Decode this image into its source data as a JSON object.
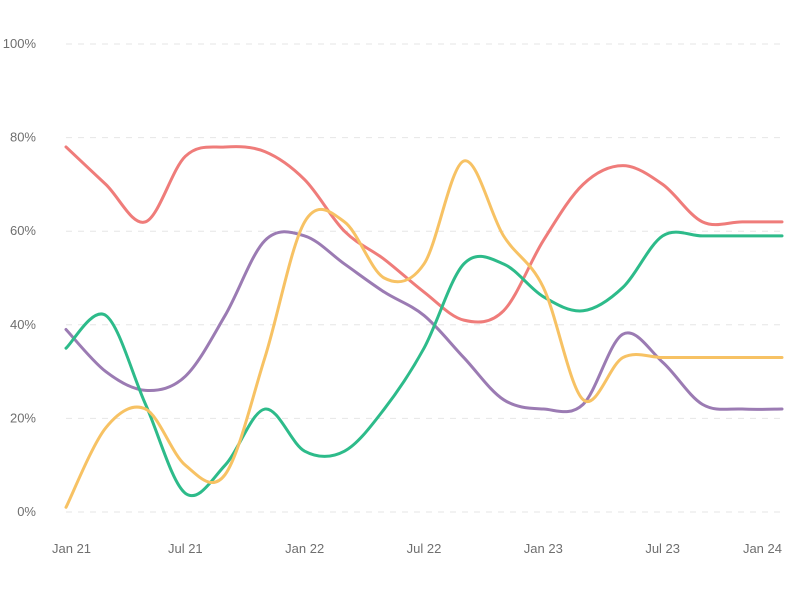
{
  "chart_data": {
    "type": "line",
    "title": "",
    "xlabel": "",
    "ylabel": "",
    "ylim": [
      0,
      100
    ],
    "grid": true,
    "legend": "none",
    "y_ticks": [
      {
        "value": 0,
        "label": "0%"
      },
      {
        "value": 20,
        "label": "20%"
      },
      {
        "value": 40,
        "label": "40%"
      },
      {
        "value": 60,
        "label": "60%"
      },
      {
        "value": 80,
        "label": "80%"
      },
      {
        "value": 100,
        "label": "100%"
      }
    ],
    "x_ticks": [
      {
        "value": "2021-01",
        "label": "Jan 21"
      },
      {
        "value": "2021-07",
        "label": "Jul 21"
      },
      {
        "value": "2022-01",
        "label": "Jan 22"
      },
      {
        "value": "2022-07",
        "label": "Jul 22"
      },
      {
        "value": "2023-01",
        "label": "Jan 23"
      },
      {
        "value": "2023-07",
        "label": "Jul 23"
      },
      {
        "value": "2024-01",
        "label": "Jan 24"
      }
    ],
    "x": [
      "2021-01",
      "2021-03",
      "2021-05",
      "2021-07",
      "2021-09",
      "2021-11",
      "2022-01",
      "2022-03",
      "2022-05",
      "2022-07",
      "2022-09",
      "2022-11",
      "2023-01",
      "2023-03",
      "2023-05",
      "2023-07",
      "2023-09",
      "2023-11",
      "2024-01"
    ],
    "series": [
      {
        "color": "#ef7c7a",
        "values": [
          78,
          70,
          62,
          76,
          78,
          77,
          71,
          60,
          54,
          47,
          41,
          43,
          58,
          70,
          74,
          70,
          62,
          62,
          62
        ]
      },
      {
        "color": "#9b7bb3",
        "values": [
          39,
          30,
          26,
          29,
          42,
          58,
          59,
          53,
          47,
          42,
          33,
          24,
          22,
          23,
          38,
          32,
          23,
          22,
          22
        ]
      },
      {
        "color": "#2dbb8a",
        "values": [
          35,
          42,
          23,
          4,
          10,
          22,
          13,
          13,
          22,
          35,
          53,
          53,
          46,
          43,
          48,
          59,
          59,
          59,
          59
        ]
      },
      {
        "color": "#f7c264",
        "values": [
          1,
          18,
          22,
          10,
          8,
          33,
          62,
          62,
          50,
          53,
          75,
          59,
          48,
          24,
          33,
          33,
          33,
          33,
          33
        ]
      }
    ]
  }
}
